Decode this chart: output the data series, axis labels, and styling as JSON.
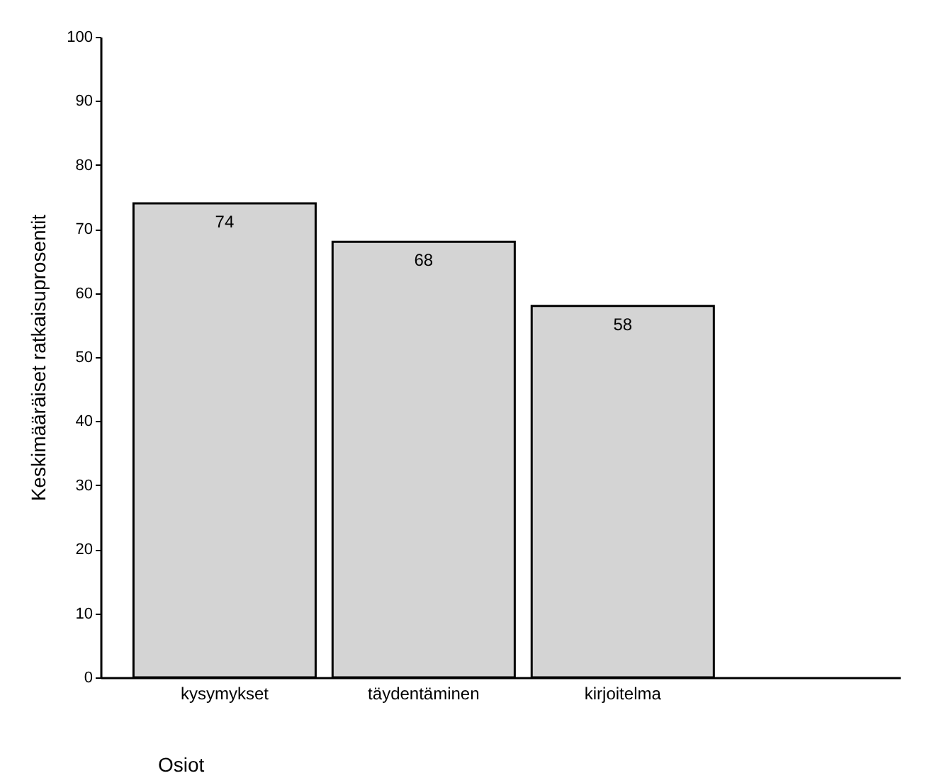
{
  "chart_data": {
    "type": "bar",
    "xlabel": "Osiot",
    "ylabel": "Keskimääräiset ratkaisuprosentit",
    "categories": [
      "kysymykset",
      "täydentäminen",
      "kirjoitelma"
    ],
    "values": [
      74,
      68,
      58
    ],
    "color": "#d4d4d4",
    "ylim": [
      0,
      100
    ],
    "yticks": [
      0,
      10,
      20,
      30,
      40,
      50,
      60,
      70,
      80,
      90,
      100
    ],
    "grid": false,
    "data_labels": true
  }
}
